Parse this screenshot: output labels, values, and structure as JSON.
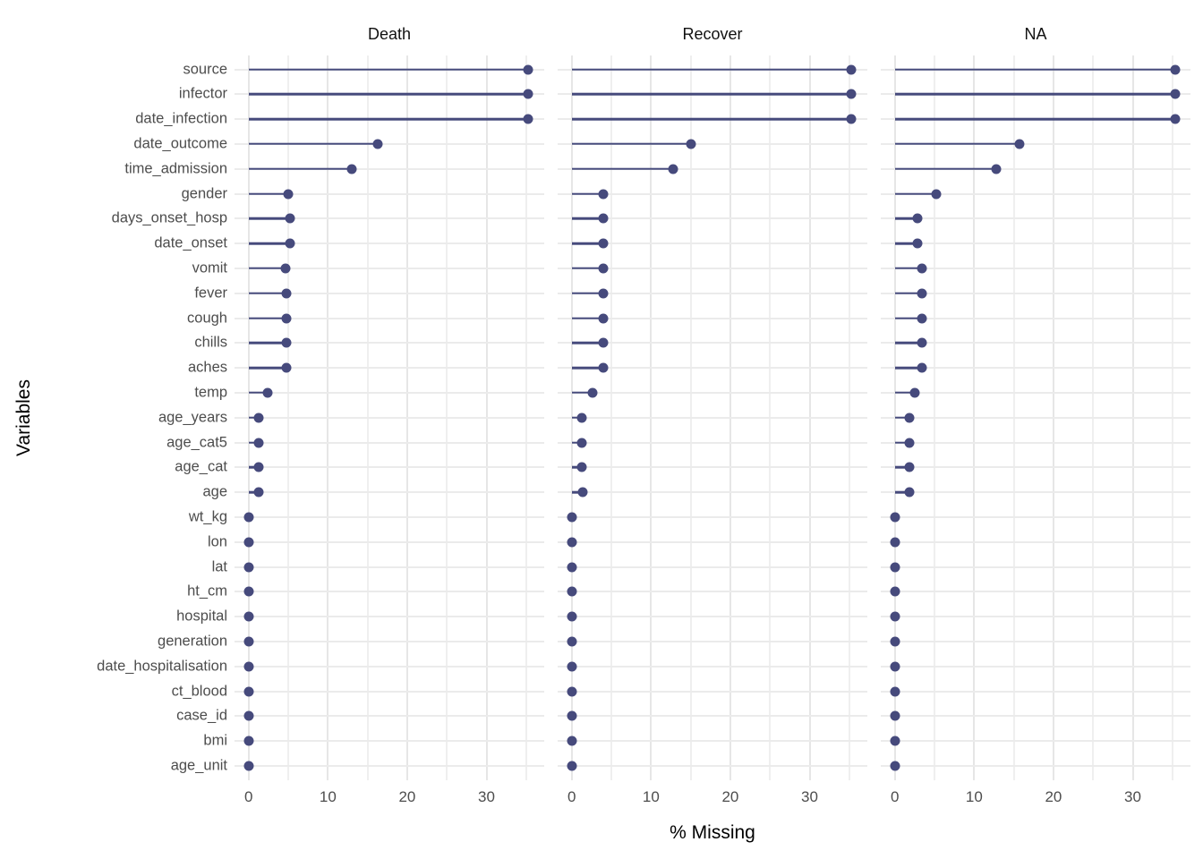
{
  "chart_data": {
    "type": "lollipop",
    "title": "",
    "xlabel": "% Missing",
    "ylabel": "Variables",
    "facets": [
      "Death",
      "Recover",
      "NA"
    ],
    "categories": [
      "source",
      "infector",
      "date_infection",
      "date_outcome",
      "time_admission",
      "gender",
      "days_onset_hosp",
      "date_onset",
      "vomit",
      "fever",
      "cough",
      "chills",
      "aches",
      "temp",
      "age_years",
      "age_cat5",
      "age_cat",
      "age",
      "wt_kg",
      "lon",
      "lat",
      "ht_cm",
      "hospital",
      "generation",
      "date_hospitalisation",
      "ct_blood",
      "case_id",
      "bmi",
      "age_unit"
    ],
    "series": [
      {
        "name": "Death",
        "values": [
          35.3,
          35.3,
          35.3,
          16.3,
          13.0,
          5.0,
          5.2,
          5.2,
          4.7,
          4.8,
          4.8,
          4.8,
          4.8,
          2.4,
          1.3,
          1.3,
          1.3,
          1.3,
          0,
          0,
          0,
          0,
          0,
          0,
          0,
          0,
          0,
          0,
          0
        ]
      },
      {
        "name": "Recover",
        "values": [
          35.3,
          35.3,
          35.3,
          15.0,
          12.8,
          4.0,
          4.0,
          4.0,
          4.0,
          4.0,
          4.0,
          4.0,
          4.0,
          2.6,
          1.3,
          1.3,
          1.3,
          1.4,
          0,
          0,
          0,
          0,
          0,
          0,
          0,
          0,
          0,
          0,
          0
        ]
      },
      {
        "name": "NA",
        "values": [
          35.4,
          35.4,
          35.4,
          15.7,
          12.8,
          5.2,
          2.9,
          2.9,
          3.4,
          3.4,
          3.4,
          3.4,
          3.4,
          2.5,
          1.8,
          1.8,
          1.8,
          1.8,
          0,
          0,
          0,
          0,
          0,
          0,
          0,
          0,
          0,
          0,
          0
        ]
      }
    ],
    "x_ticks": [
      0,
      10,
      20,
      30
    ],
    "x_minor_ticks": [
      5,
      15,
      25,
      35
    ],
    "xlim": [
      -1.78,
      37.28
    ],
    "grid": true,
    "legend": "none",
    "point_color": "#464a7c",
    "gridline_color": "#ebebeb",
    "axis_text_color": "#4d4d4d"
  }
}
